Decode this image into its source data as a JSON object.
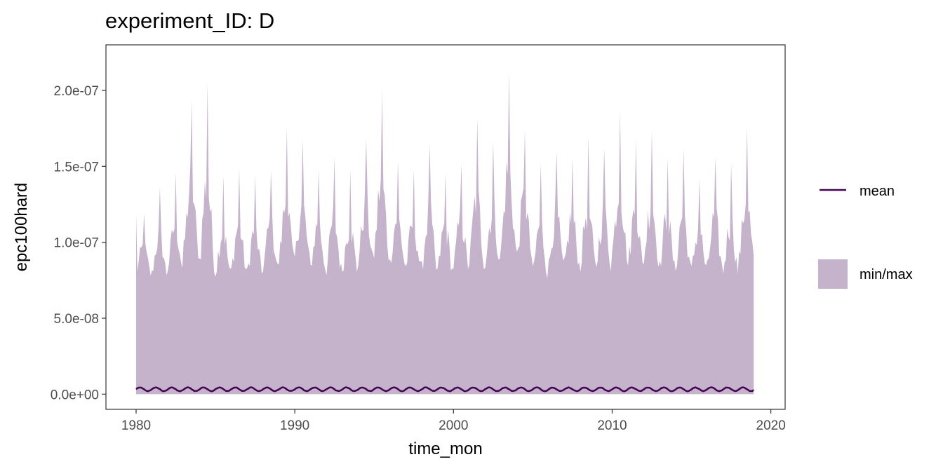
{
  "chart_data": {
    "type": "area",
    "title": "experiment_ID: D",
    "xlabel": "time_mon",
    "ylabel": "epc100hard",
    "xlim": [
      1978.1,
      2020.9
    ],
    "ylim": [
      -1e-08,
      2.3e-07
    ],
    "x_ticks": [
      1980,
      1990,
      2000,
      2010,
      2020
    ],
    "x_tick_labels": [
      "1980",
      "1990",
      "2000",
      "2010",
      "2020"
    ],
    "y_ticks": [
      0,
      5e-08,
      1e-07,
      1.5e-07,
      2e-07
    ],
    "y_tick_labels": [
      "0.0e+00",
      "5.0e-08",
      "1.0e-07",
      "1.5e-07",
      "2.0e-07"
    ],
    "x_range": [
      1980.0,
      2018.92
    ],
    "grid": false,
    "legend_position": "right",
    "legend": [
      {
        "label": "mean",
        "kind": "line",
        "color": "#440154"
      },
      {
        "label": "min/max",
        "kind": "ribbon",
        "color": "#c5b3cb"
      }
    ],
    "series": [
      {
        "name": "min/max",
        "kind": "ribbon",
        "min_values": [
          0
        ],
        "annual_max_values": [
          1.19e-07,
          1.36e-07,
          1.46e-07,
          1.93e-07,
          2.05e-07,
          1.44e-07,
          1.48e-07,
          1.44e-07,
          1.47e-07,
          1.76e-07,
          1.68e-07,
          1.48e-07,
          1.56e-07,
          1.48e-07,
          1.68e-07,
          2e-07,
          1.54e-07,
          1.48e-07,
          1.64e-07,
          1.46e-07,
          1.52e-07,
          1.82e-07,
          1.66e-07,
          2.12e-07,
          1.74e-07,
          1.52e-07,
          1.6e-07,
          1.56e-07,
          1.7e-07,
          1.62e-07,
          1.86e-07,
          1.68e-07,
          1.74e-07,
          1.56e-07,
          1.62e-07,
          1.42e-07,
          1.56e-07,
          1.52e-07,
          1.76e-07,
          1.66e-07
        ],
        "annual_low_values": [
          6.8e-08,
          6.4e-08,
          6.6e-08,
          6.8e-08,
          5.6e-08,
          6.2e-08,
          6.4e-08,
          6.2e-08,
          6.6e-08,
          6.4e-08,
          6.8e-08,
          6.6e-08,
          6.2e-08,
          6.4e-08,
          6.6e-08,
          6.4e-08,
          6.8e-08,
          6.6e-08,
          6e-08,
          6.4e-08,
          6.6e-08,
          6.2e-08,
          6.4e-08,
          6.6e-08,
          6.8e-08,
          6e-08,
          6.4e-08,
          6.6e-08,
          6.2e-08,
          6.4e-08,
          6.8e-08,
          6.2e-08,
          6.6e-08,
          6.4e-08,
          6.2e-08,
          6.6e-08,
          6.4e-08,
          6.2e-08,
          6.6e-08,
          6.8e-08
        ],
        "color": "#c5b3cb"
      },
      {
        "name": "mean",
        "kind": "line",
        "baseline": 3.2e-09,
        "seasonal_amplitude": 1.2e-09,
        "color": "#440154"
      }
    ]
  }
}
